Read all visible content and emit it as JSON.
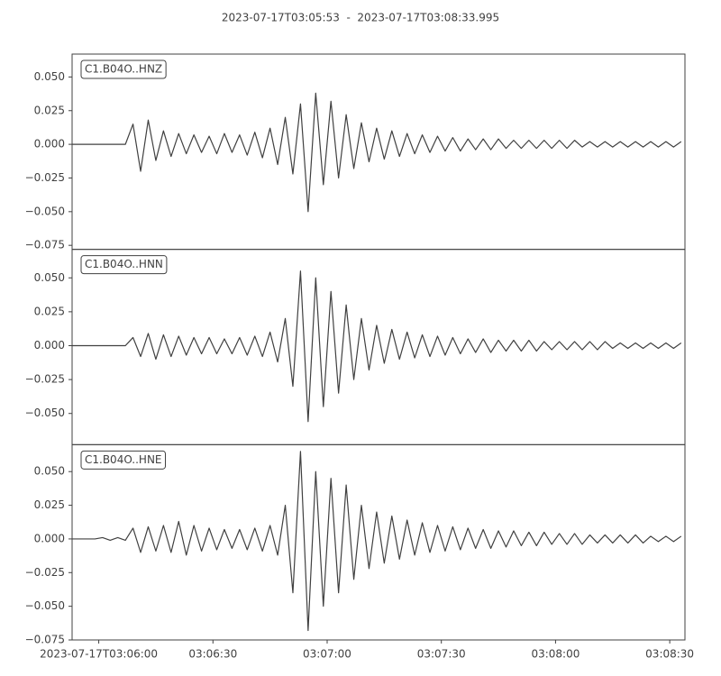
{
  "chart_data": {
    "type": "line",
    "title": "2023-07-17T03:05:53  -  2023-07-17T03:08:33.995",
    "xlim": [
      "2023-07-17T03:05:53",
      "2023-07-17T03:08:33.995"
    ],
    "xticks": [
      {
        "value": "2023-07-17T03:06:00",
        "label": "2023-07-17T03:06:00"
      },
      {
        "value": "2023-07-17T03:06:30",
        "label": "03:06:30"
      },
      {
        "value": "2023-07-17T03:07:00",
        "label": "03:07:00"
      },
      {
        "value": "2023-07-17T03:07:30",
        "label": "03:07:30"
      },
      {
        "value": "2023-07-17T03:08:00",
        "label": "03:08:00"
      },
      {
        "value": "2023-07-17T03:08:30",
        "label": "03:08:30"
      }
    ],
    "x": [
      "2023-07-17T03:05:53",
      "2023-07-17T03:05:55",
      "2023-07-17T03:05:57",
      "2023-07-17T03:05:59",
      "2023-07-17T03:06:01",
      "2023-07-17T03:06:03",
      "2023-07-17T03:06:05",
      "2023-07-17T03:06:07",
      "2023-07-17T03:06:09",
      "2023-07-17T03:06:11",
      "2023-07-17T03:06:13",
      "2023-07-17T03:06:15",
      "2023-07-17T03:06:17",
      "2023-07-17T03:06:19",
      "2023-07-17T03:06:21",
      "2023-07-17T03:06:23",
      "2023-07-17T03:06:25",
      "2023-07-17T03:06:27",
      "2023-07-17T03:06:29",
      "2023-07-17T03:06:31",
      "2023-07-17T03:06:33",
      "2023-07-17T03:06:35",
      "2023-07-17T03:06:37",
      "2023-07-17T03:06:39",
      "2023-07-17T03:06:41",
      "2023-07-17T03:06:43",
      "2023-07-17T03:06:45",
      "2023-07-17T03:06:47",
      "2023-07-17T03:06:49",
      "2023-07-17T03:06:51",
      "2023-07-17T03:06:53",
      "2023-07-17T03:06:55",
      "2023-07-17T03:06:57",
      "2023-07-17T03:06:59",
      "2023-07-17T03:07:01",
      "2023-07-17T03:07:03",
      "2023-07-17T03:07:05",
      "2023-07-17T03:07:07",
      "2023-07-17T03:07:09",
      "2023-07-17T03:07:11",
      "2023-07-17T03:07:13",
      "2023-07-17T03:07:15",
      "2023-07-17T03:07:17",
      "2023-07-17T03:07:19",
      "2023-07-17T03:07:21",
      "2023-07-17T03:07:23",
      "2023-07-17T03:07:25",
      "2023-07-17T03:07:27",
      "2023-07-17T03:07:29",
      "2023-07-17T03:07:31",
      "2023-07-17T03:07:33",
      "2023-07-17T03:07:35",
      "2023-07-17T03:07:37",
      "2023-07-17T03:07:39",
      "2023-07-17T03:07:41",
      "2023-07-17T03:07:43",
      "2023-07-17T03:07:45",
      "2023-07-17T03:07:47",
      "2023-07-17T03:07:49",
      "2023-07-17T03:07:51",
      "2023-07-17T03:07:53",
      "2023-07-17T03:07:55",
      "2023-07-17T03:07:57",
      "2023-07-17T03:07:59",
      "2023-07-17T03:08:01",
      "2023-07-17T03:08:03",
      "2023-07-17T03:08:05",
      "2023-07-17T03:08:07",
      "2023-07-17T03:08:09",
      "2023-07-17T03:08:11",
      "2023-07-17T03:08:13",
      "2023-07-17T03:08:15",
      "2023-07-17T03:08:17",
      "2023-07-17T03:08:19",
      "2023-07-17T03:08:21",
      "2023-07-17T03:08:23",
      "2023-07-17T03:08:25",
      "2023-07-17T03:08:27",
      "2023-07-17T03:08:29",
      "2023-07-17T03:08:31",
      "2023-07-17T03:08:33"
    ],
    "series": [
      {
        "name": "C1.B04O..HNZ",
        "color": "#404040",
        "ylim": [
          -0.078,
          0.067
        ],
        "yticks": [
          {
            "value": -0.075,
            "label": "−0.075"
          },
          {
            "value": -0.05,
            "label": "−0.050"
          },
          {
            "value": -0.025,
            "label": "−0.025"
          },
          {
            "value": 0,
            "label": "0.000"
          },
          {
            "value": 0.025,
            "label": "0.025"
          },
          {
            "value": 0.05,
            "label": "0.050"
          }
        ],
        "values": [
          0,
          0,
          0,
          0,
          0,
          0,
          0,
          0,
          0.015,
          -0.02,
          0.018,
          -0.012,
          0.01,
          -0.009,
          0.008,
          -0.007,
          0.007,
          -0.006,
          0.006,
          -0.007,
          0.008,
          -0.006,
          0.007,
          -0.008,
          0.009,
          -0.01,
          0.012,
          -0.015,
          0.02,
          -0.022,
          0.03,
          -0.05,
          0.038,
          -0.03,
          0.032,
          -0.025,
          0.022,
          -0.018,
          0.016,
          -0.013,
          0.012,
          -0.011,
          0.01,
          -0.009,
          0.008,
          -0.007,
          0.007,
          -0.006,
          0.006,
          -0.005,
          0.005,
          -0.005,
          0.004,
          -0.004,
          0.004,
          -0.004,
          0.004,
          -0.003,
          0.003,
          -0.003,
          0.003,
          -0.003,
          0.003,
          -0.003,
          0.003,
          -0.003,
          0.003,
          -0.002,
          0.002,
          -0.002,
          0.002,
          -0.002,
          0.002,
          -0.002,
          0.002,
          -0.002,
          0.002,
          -0.002,
          0.002,
          -0.002,
          0.002
        ]
      },
      {
        "name": "C1.B04O..HNN",
        "color": "#404040",
        "ylim": [
          -0.073,
          0.071
        ],
        "yticks": [
          {
            "value": -0.05,
            "label": "−0.050"
          },
          {
            "value": -0.025,
            "label": "−0.025"
          },
          {
            "value": 0,
            "label": "0.000"
          },
          {
            "value": 0.025,
            "label": "0.025"
          },
          {
            "value": 0.05,
            "label": "0.050"
          }
        ],
        "values": [
          0,
          0,
          0,
          0,
          0,
          0,
          0,
          0,
          0.006,
          -0.008,
          0.009,
          -0.01,
          0.008,
          -0.008,
          0.007,
          -0.007,
          0.006,
          -0.006,
          0.006,
          -0.006,
          0.005,
          -0.006,
          0.006,
          -0.007,
          0.007,
          -0.008,
          0.01,
          -0.012,
          0.02,
          -0.03,
          0.055,
          -0.056,
          0.05,
          -0.045,
          0.04,
          -0.035,
          0.03,
          -0.025,
          0.02,
          -0.018,
          0.015,
          -0.013,
          0.012,
          -0.01,
          0.01,
          -0.009,
          0.008,
          -0.008,
          0.007,
          -0.007,
          0.006,
          -0.006,
          0.005,
          -0.005,
          0.005,
          -0.005,
          0.004,
          -0.004,
          0.004,
          -0.004,
          0.004,
          -0.004,
          0.003,
          -0.003,
          0.003,
          -0.003,
          0.003,
          -0.003,
          0.003,
          -0.003,
          0.003,
          -0.002,
          0.002,
          -0.002,
          0.002,
          -0.002,
          0.002,
          -0.002,
          0.002,
          -0.002,
          0.002
        ]
      },
      {
        "name": "C1.B04O..HNE",
        "color": "#404040",
        "ylim": [
          -0.075,
          0.07
        ],
        "yticks": [
          {
            "value": -0.075,
            "label": "−0.075"
          },
          {
            "value": -0.05,
            "label": "−0.050"
          },
          {
            "value": -0.025,
            "label": "−0.025"
          },
          {
            "value": 0,
            "label": "0.000"
          },
          {
            "value": 0.025,
            "label": "0.025"
          },
          {
            "value": 0.05,
            "label": "0.050"
          }
        ],
        "values": [
          0,
          0,
          0,
          0,
          0.001,
          -0.001,
          0.001,
          -0.001,
          0.008,
          -0.01,
          0.009,
          -0.009,
          0.01,
          -0.01,
          0.013,
          -0.012,
          0.01,
          -0.009,
          0.008,
          -0.008,
          0.007,
          -0.007,
          0.007,
          -0.008,
          0.008,
          -0.009,
          0.01,
          -0.012,
          0.025,
          -0.04,
          0.065,
          -0.068,
          0.05,
          -0.05,
          0.045,
          -0.04,
          0.04,
          -0.03,
          0.025,
          -0.022,
          0.02,
          -0.018,
          0.017,
          -0.015,
          0.014,
          -0.012,
          0.012,
          -0.01,
          0.01,
          -0.009,
          0.009,
          -0.008,
          0.008,
          -0.007,
          0.007,
          -0.007,
          0.006,
          -0.006,
          0.006,
          -0.005,
          0.005,
          -0.005,
          0.005,
          -0.004,
          0.004,
          -0.004,
          0.004,
          -0.004,
          0.003,
          -0.003,
          0.003,
          -0.003,
          0.003,
          -0.003,
          0.003,
          -0.003,
          0.002,
          -0.002,
          0.002,
          -0.002,
          0.002
        ]
      }
    ]
  }
}
